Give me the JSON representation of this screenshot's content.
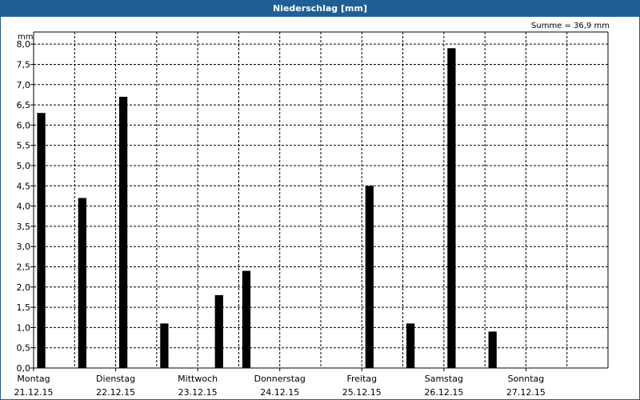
{
  "title": "Niederschlag [mm]",
  "summary": "Summe = 36,9 mm",
  "chart_data": {
    "type": "bar",
    "title": "Niederschlag [mm]",
    "ylabel": "mm",
    "ylim": [
      0,
      8.3
    ],
    "yticks": [
      "0,0",
      "0,5",
      "1,0",
      "1,5",
      "2,0",
      "2,5",
      "3,0",
      "3,5",
      "4,0",
      "4,5",
      "5,0",
      "5,5",
      "6,0",
      "6,5",
      "7,0",
      "7,5",
      "8,0"
    ],
    "grid": true,
    "days": [
      {
        "day": "Montag",
        "date": "21.12.15"
      },
      {
        "day": "Dienstag",
        "date": "22.12.15"
      },
      {
        "day": "Mittwoch",
        "date": "23.12.15"
      },
      {
        "day": "Donnerstag",
        "date": "24.12.15"
      },
      {
        "day": "Freitag",
        "date": "25.12.15"
      },
      {
        "day": "Samstag",
        "date": "26.12.15"
      },
      {
        "day": "Sonntag",
        "date": "27.12.15"
      }
    ],
    "bars_per_day": 6,
    "values": [
      6.3,
      0,
      0,
      4.2,
      0,
      0,
      6.7,
      0,
      0,
      1.1,
      0,
      0,
      0,
      1.8,
      0,
      2.4,
      0,
      0,
      0,
      0,
      0,
      0,
      0,
      0,
      4.5,
      0,
      0,
      1.1,
      0,
      0,
      7.9,
      0,
      0,
      0.9,
      0,
      0,
      0,
      0,
      0,
      0,
      0,
      0
    ]
  }
}
